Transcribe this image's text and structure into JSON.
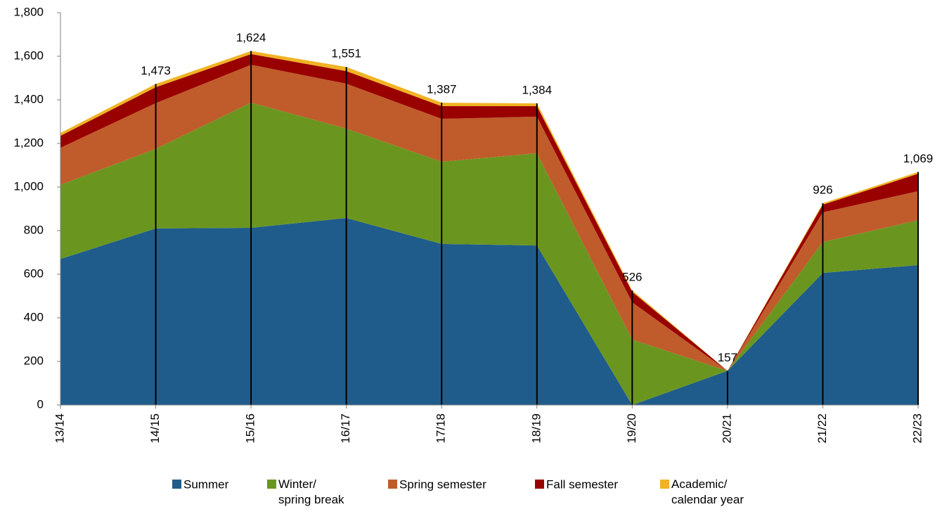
{
  "chart_data": {
    "type": "stacked_area",
    "categories": [
      "13/14",
      "14/15",
      "15/16",
      "16/17",
      "17/18",
      "18/19",
      "19/20",
      "20/21",
      "21/22",
      "22/23"
    ],
    "series": [
      {
        "name": "Summer",
        "color": "#1f5c8b",
        "values": [
          670,
          810,
          813,
          858,
          739,
          732,
          0,
          157,
          606,
          642
        ]
      },
      {
        "name": "Winter/\nspring break",
        "color": "#6a961f",
        "values": [
          340,
          365,
          574,
          410,
          377,
          423,
          300,
          0,
          142,
          206
        ]
      },
      {
        "name": "Spring semester",
        "color": "#c05c2b",
        "values": [
          170,
          210,
          174,
          206,
          197,
          168,
          171,
          0,
          136,
          133
        ]
      },
      {
        "name": "Fall semester",
        "color": "#990000",
        "values": [
          55,
          73,
          49,
          58,
          58,
          48,
          48,
          0,
          35,
          80
        ]
      },
      {
        "name": "Academic/\ncalendar year",
        "color": "#f0b323",
        "values": [
          13,
          15,
          14,
          19,
          16,
          13,
          7,
          0,
          7,
          8
        ]
      }
    ],
    "totals": [
      null,
      1473,
      1624,
      1551,
      1387,
      1384,
      526,
      157,
      926,
      1069
    ],
    "total_labels": [
      null,
      "1,473",
      "1,624",
      "1,551",
      "1,387",
      "1,384",
      "526",
      "157",
      "926",
      "1,069"
    ],
    "ylim": [
      0,
      1800
    ],
    "yticks": [
      0,
      200,
      400,
      600,
      800,
      {
        "value": 1000,
        "label": "1,000"
      },
      {
        "value": 1200,
        "label": "1,200"
      },
      {
        "value": 1400,
        "label": "1,400"
      },
      {
        "value": 1600,
        "label": "1,600"
      },
      {
        "value": 1800,
        "label": "1,800"
      }
    ]
  }
}
